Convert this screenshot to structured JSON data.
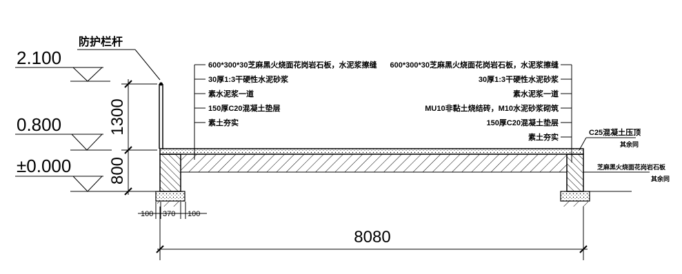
{
  "callout_title": "防护栏杆",
  "elevations": [
    "2.100",
    "0.800",
    "±0.000"
  ],
  "vertical_dims": [
    "1300",
    "800"
  ],
  "footing_dims": [
    "100",
    "370",
    "100"
  ],
  "overall_dim": "8080",
  "left_layers": [
    "600*300*30芝麻黑火烧面花岗岩石板，水泥浆擦缝",
    "30厚1:3干硬性水泥砂浆",
    "素水泥浆一道",
    "150厚C20混凝土垫层",
    "素土夯实"
  ],
  "right_layers": [
    "600*300*30芝麻黑火烧面花岗岩石板，水泥浆擦缝",
    "30厚1:3干硬性水泥砂浆",
    "素水泥浆一道",
    "MU10非黏土烧结砖，M10水泥砂浆砌筑",
    "150厚C20混凝土垫层",
    "素土夯实"
  ],
  "right_notes": [
    {
      "title": "C25混凝土压顶",
      "sub": "其余同"
    },
    {
      "title": "芝麻黑火烧面花岗岩石板",
      "sub": "其余同"
    }
  ]
}
